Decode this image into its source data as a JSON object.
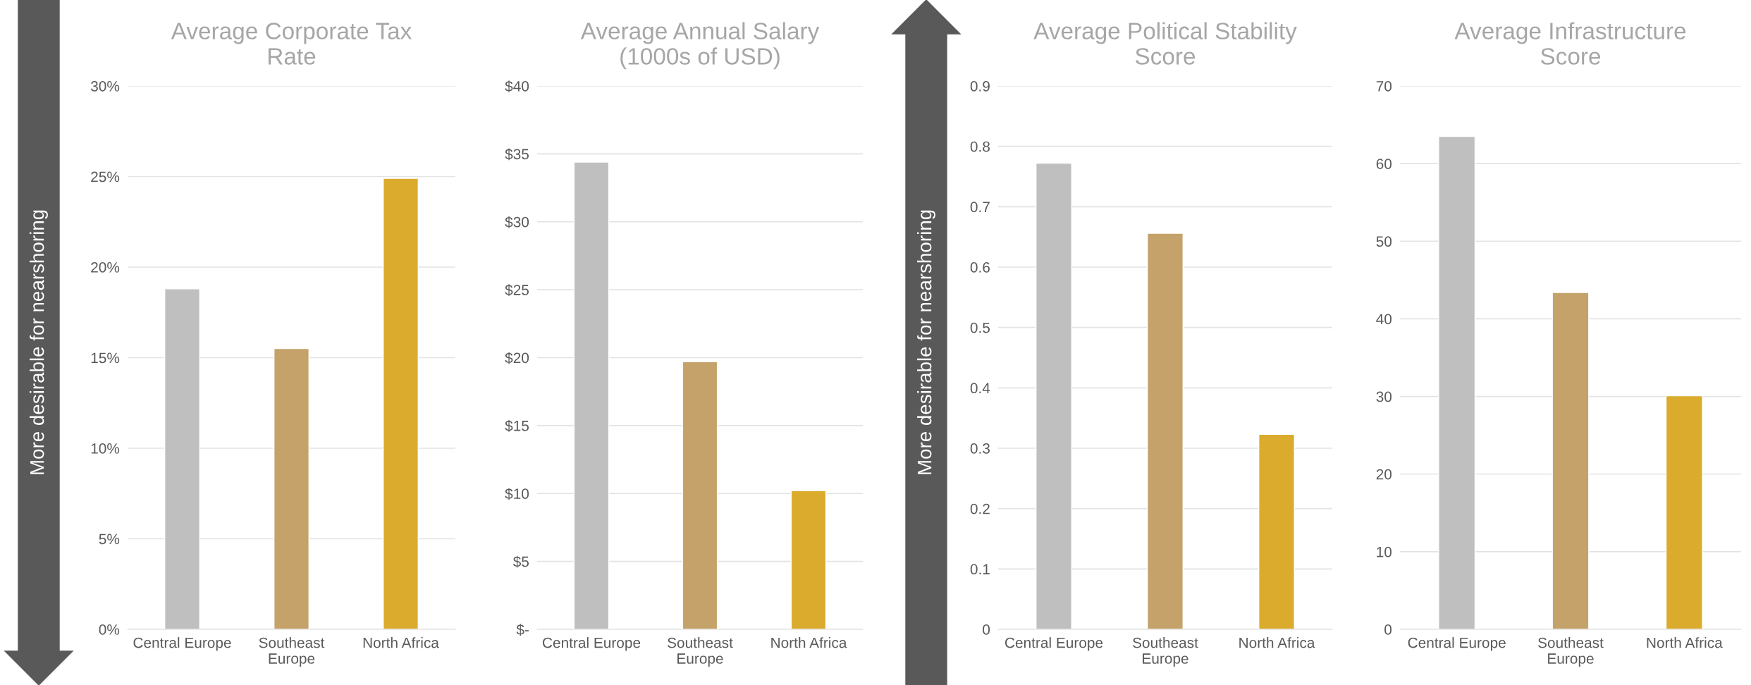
{
  "chart_data": [
    {
      "type": "bar",
      "title": "Average Corporate Tax\nRate",
      "categories": [
        "Central Europe",
        "Southeast\nEurope",
        "North Africa"
      ],
      "values": [
        18.8,
        15.5,
        24.9
      ],
      "colors": [
        "#bfbfbf",
        "#c4a26a",
        "#dbab2e"
      ],
      "ylim": [
        0,
        30
      ],
      "yticks": [
        {
          "value": 0,
          "label": "0%"
        },
        {
          "value": 5,
          "label": "5%"
        },
        {
          "value": 10,
          "label": "10%"
        },
        {
          "value": 15,
          "label": "15%"
        },
        {
          "value": 20,
          "label": "20%"
        },
        {
          "value": 25,
          "label": "25%"
        },
        {
          "value": 30,
          "label": "30%"
        }
      ],
      "grid": "y",
      "legend": false,
      "annotations": [
        "More desirable for nearshoring"
      ]
    },
    {
      "type": "bar",
      "title": "Average Annual Salary\n(1000s of USD)",
      "categories": [
        "Central Europe",
        "Southeast\nEurope",
        "North Africa"
      ],
      "values": [
        34.4,
        19.7,
        10.2
      ],
      "colors": [
        "#bfbfbf",
        "#c4a26a",
        "#dbab2e"
      ],
      "ylim": [
        0,
        40
      ],
      "yticks": [
        {
          "value": 0,
          "label": "$-"
        },
        {
          "value": 5,
          "label": "$5"
        },
        {
          "value": 10,
          "label": "$10"
        },
        {
          "value": 15,
          "label": "$15"
        },
        {
          "value": 20,
          "label": "$20"
        },
        {
          "value": 25,
          "label": "$25"
        },
        {
          "value": 30,
          "label": "$30"
        },
        {
          "value": 35,
          "label": "$35"
        },
        {
          "value": 40,
          "label": "$40"
        }
      ],
      "grid": "y",
      "legend": false
    },
    {
      "type": "bar",
      "title": "Average Political Stability\nScore",
      "categories": [
        "Central Europe",
        "Southeast\nEurope",
        "North Africa"
      ],
      "values": [
        0.772,
        0.656,
        0.323
      ],
      "colors": [
        "#bfbfbf",
        "#c4a26a",
        "#dbab2e"
      ],
      "ylim": [
        0,
        0.9
      ],
      "yticks": [
        0,
        0.1,
        0.2,
        0.3,
        0.4,
        0.5,
        0.6,
        0.7,
        0.8,
        0.9
      ],
      "grid": "y",
      "legend": false,
      "annotations": [
        "More desirable for nearshoring"
      ]
    },
    {
      "type": "bar",
      "title": "Average Infrastructure\nScore",
      "categories": [
        "Central Europe",
        "Southeast\nEurope",
        "North Africa"
      ],
      "values": [
        63.5,
        43.4,
        30.1
      ],
      "colors": [
        "#bfbfbf",
        "#c4a26a",
        "#dbab2e"
      ],
      "ylim": [
        0,
        70
      ],
      "yticks": [
        0,
        10,
        20,
        30,
        40,
        50,
        60,
        70
      ],
      "grid": "y",
      "legend": false
    }
  ]
}
